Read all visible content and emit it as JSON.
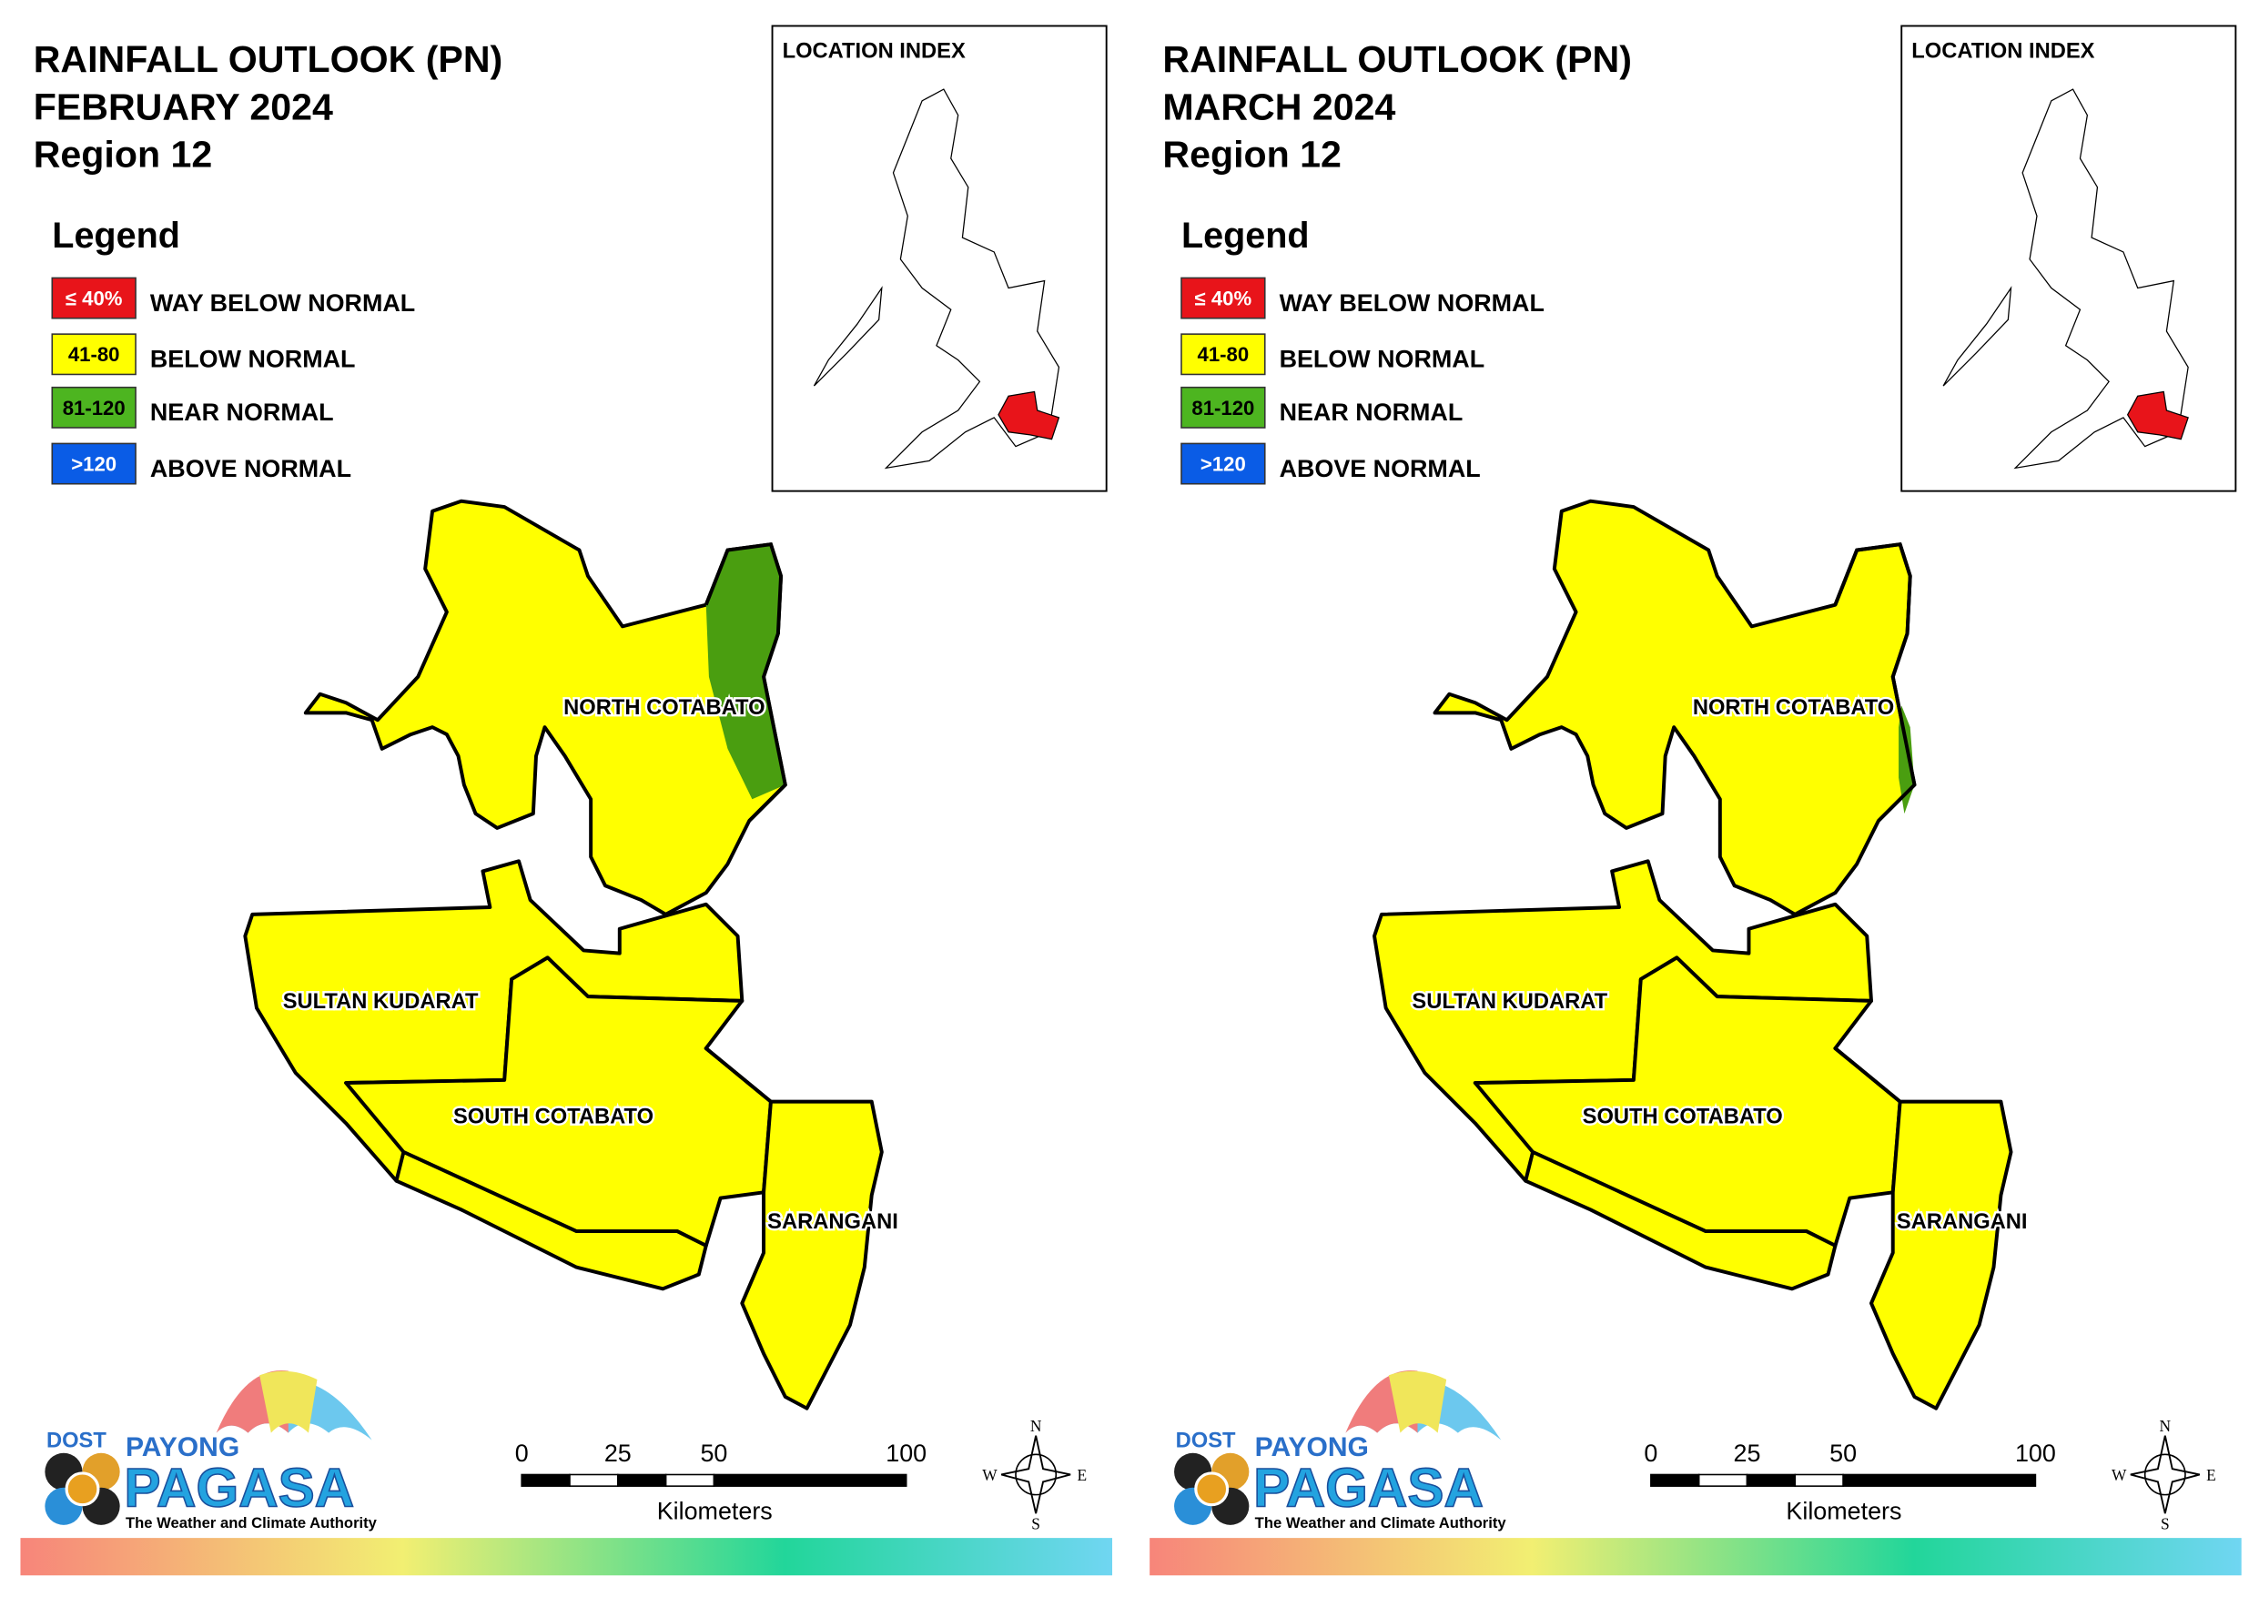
{
  "panels": [
    {
      "title": [
        "RAINFALL OUTLOOK (PN)",
        "FEBRUARY 2024",
        "Region 12"
      ],
      "legend_title": "Legend",
      "legend": [
        {
          "swatch": "≤ 40%",
          "label": "WAY BELOW NORMAL",
          "color": "#e8141a"
        },
        {
          "swatch": "41-80",
          "label": "BELOW NORMAL",
          "color": "#ffff00"
        },
        {
          "swatch": "81-120",
          "label": "NEAR NORMAL",
          "color": "#4db520"
        },
        {
          "swatch": ">120",
          "label": "ABOVE NORMAL",
          "color": "#0a5ce6"
        }
      ],
      "location_index": "LOCATION INDEX",
      "provinces": [
        "NORTH COTABATO",
        "SULTAN KUDARAT",
        "SOUTH COTABATO",
        "SARANGANI"
      ],
      "scale": [
        0,
        25,
        50,
        100
      ],
      "scale_unit": "Kilometers",
      "compass": [
        "N",
        "E",
        "S",
        "W"
      ],
      "logo": [
        "DOST",
        "PAYONG",
        "PAGASA",
        "The Weather and Climate Authority"
      ]
    },
    {
      "title": [
        "RAINFALL OUTLOOK (PN)",
        "MARCH 2024",
        "Region 12"
      ],
      "legend_title": "Legend",
      "legend": [
        {
          "swatch": "≤ 40%",
          "label": "WAY BELOW NORMAL",
          "color": "#e8141a"
        },
        {
          "swatch": "41-80",
          "label": "BELOW NORMAL",
          "color": "#ffff00"
        },
        {
          "swatch": "81-120",
          "label": "NEAR NORMAL",
          "color": "#4db520"
        },
        {
          "swatch": ">120",
          "label": "ABOVE NORMAL",
          "color": "#0a5ce6"
        }
      ],
      "location_index": "LOCATION INDEX",
      "provinces": [
        "NORTH COTABATO",
        "SULTAN KUDARAT",
        "SOUTH COTABATO",
        "SARANGANI"
      ],
      "scale": [
        0,
        25,
        50,
        100
      ],
      "scale_unit": "Kilometers",
      "compass": [
        "N",
        "E",
        "S",
        "W"
      ],
      "logo": [
        "DOST",
        "PAYONG",
        "PAGASA",
        "The Weather and Climate Authority"
      ]
    }
  ]
}
